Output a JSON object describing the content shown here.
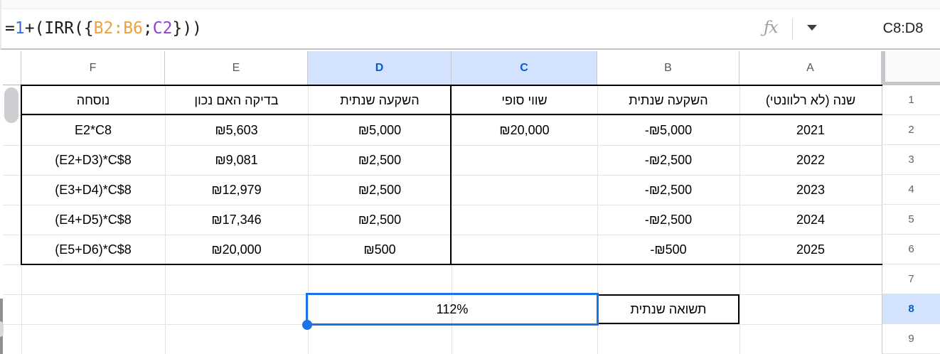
{
  "formula_bar": {
    "formula_parts": [
      {
        "text": "=",
        "color": "#1b1b1b"
      },
      {
        "text": "1",
        "color": "#3d6fd7"
      },
      {
        "text": "+(IRR({",
        "color": "#1b1b1b"
      },
      {
        "text": "B2:B6",
        "color": "#f0a13c"
      },
      {
        "text": ";",
        "color": "#1b1b1b"
      },
      {
        "text": "C2",
        "color": "#8f44cf"
      },
      {
        "text": "}))",
        "color": "#1b1b1b"
      }
    ],
    "name_box": "C8:D8",
    "icons": {
      "fx": "fx-icon",
      "caret": "dropdown-caret-icon"
    }
  },
  "grid": {
    "columns": [
      {
        "id": "F",
        "selected": false
      },
      {
        "id": "E",
        "selected": false
      },
      {
        "id": "D",
        "selected": true
      },
      {
        "id": "C",
        "selected": true
      },
      {
        "id": "B",
        "selected": false
      },
      {
        "id": "A",
        "selected": false
      }
    ],
    "rows": [
      {
        "num": "1",
        "selected": false,
        "cells": {
          "F": "נוסחה",
          "E": "בדיקה האם נכון",
          "D": "השקעה שנתית",
          "C": "שווי סופי",
          "B": "השקעה שנתית",
          "A": "שנה (לא רלוונטי)"
        }
      },
      {
        "num": "2",
        "selected": false,
        "cells": {
          "F": "E2*C8",
          "E": "₪5,603",
          "D": "₪5,000",
          "C": "₪20,000",
          "B": "-₪5,000",
          "A": "2021"
        }
      },
      {
        "num": "3",
        "selected": false,
        "cells": {
          "F": "(E2+D3)*C$8",
          "E": "₪9,081",
          "D": "₪2,500",
          "B": "-₪2,500",
          "A": "2022"
        }
      },
      {
        "num": "4",
        "selected": false,
        "cells": {
          "F": "(E3+D4)*C$8",
          "E": "₪12,979",
          "D": "₪2,500",
          "B": "-₪2,500",
          "A": "2023"
        }
      },
      {
        "num": "5",
        "selected": false,
        "cells": {
          "F": "(E4+D5)*C$8",
          "E": "₪17,346",
          "D": "₪2,500",
          "B": "-₪2,500",
          "A": "2024"
        }
      },
      {
        "num": "6",
        "selected": false,
        "cells": {
          "F": "(E5+D6)*C$8",
          "E": "₪20,000",
          "D": "₪500",
          "B": "-₪500",
          "A": "2025"
        }
      },
      {
        "num": "7",
        "selected": false,
        "cells": {}
      },
      {
        "num": "8",
        "selected": true,
        "cells": {
          "B": "תשואה שנתית"
        },
        "boxed": [
          "B"
        ]
      },
      {
        "num": "9",
        "selected": false,
        "cells": {}
      }
    ],
    "selection": {
      "range": "C8:D8",
      "display_value": "112%",
      "anchor_row": "8",
      "merged_columns": [
        "D",
        "C"
      ]
    }
  },
  "colors": {
    "accent_blue": "#1a73e8",
    "selected_header_bg": "#d3e3fd",
    "selected_header_text": "#0b57d0",
    "formula_number_blue": "#3d6fd7",
    "formula_range_orange": "#f0a13c",
    "formula_range_purple": "#8f44cf",
    "table_border_black": "#000000",
    "grid_line": "#e2e2e2"
  }
}
